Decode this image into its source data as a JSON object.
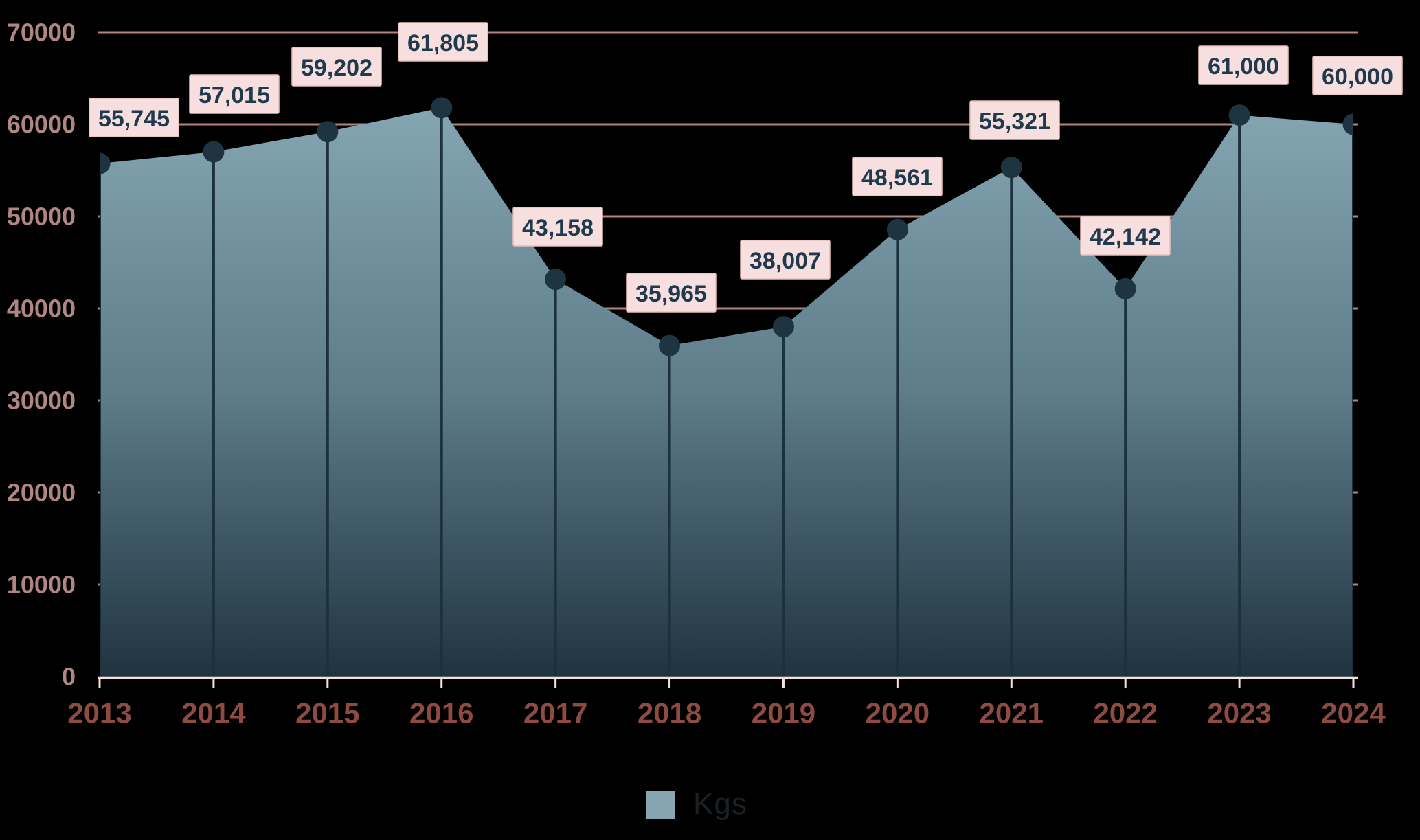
{
  "chart_data": {
    "type": "area",
    "title": "",
    "categories": [
      "2013",
      "2014",
      "2015",
      "2016",
      "2017",
      "2018",
      "2019",
      "2020",
      "2021",
      "2022",
      "2023",
      "2024"
    ],
    "series": [
      {
        "name": "Kgs",
        "values": [
          55745,
          57015,
          59202,
          61805,
          43158,
          35965,
          38007,
          48561,
          55321,
          42142,
          61000,
          60000
        ]
      }
    ],
    "data_labels": [
      "55,745",
      "57,015",
      "59,202",
      "61,805",
      "43,158",
      "35,965",
      "38,007",
      "48,561",
      "55,321",
      "42,142",
      "61,000",
      "60,000"
    ],
    "ylim": [
      0,
      70000
    ],
    "ytick_step": 10000,
    "ytick_labels": [
      "0",
      "10000",
      "20000",
      "30000",
      "40000",
      "50000",
      "60000",
      "70000"
    ],
    "grid": "horizontal",
    "legend_position": "bottom-center",
    "markers": "filled-circle",
    "drop_lines": "vertical",
    "colors": {
      "background": "#000000",
      "area_gradient_top": "#84a5b2",
      "area_gradient_mid": "#5e7c8a",
      "area_gradient_bottom": "#203440",
      "marker": "#1e3440",
      "drop_line": "#1b313e",
      "gridline": "#b3847f",
      "axis_line": "#f8e0de",
      "x_tick_label": "#8e4b42",
      "y_tick_label": "#b08683",
      "data_label_box_fill": "#f6dfde",
      "data_label_box_border": "#e9c0bc",
      "data_label_text": "#1f3a4c",
      "legend_swatch": "#87a5b1",
      "legend_text": "#1b2125"
    }
  }
}
